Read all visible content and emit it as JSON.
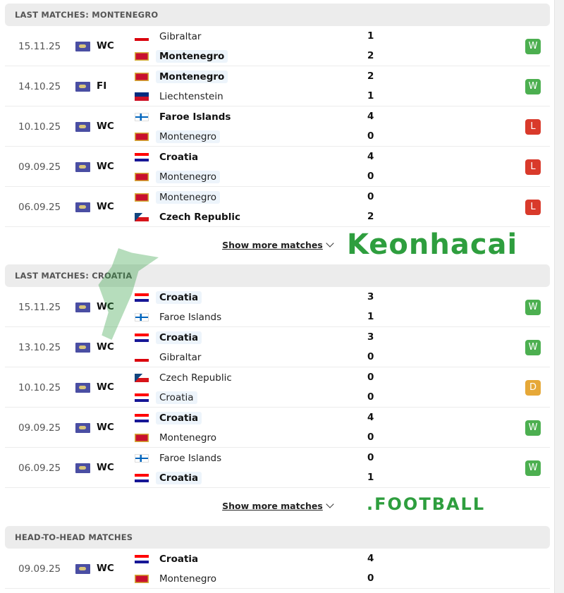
{
  "colors": {
    "win": "#4caf50",
    "loss": "#d93a2b",
    "draw": "#e6a838",
    "highlight": "#edf4fb"
  },
  "sections": [
    {
      "title": "LAST MATCHES: MONTENEGRO",
      "show_more": "Show more matches",
      "matches": [
        {
          "date": "15.11.25",
          "comp": "WC",
          "home": {
            "name": "Gibraltar",
            "flag": "gibraltar",
            "bold": false,
            "hl": false
          },
          "away": {
            "name": "Montenegro",
            "flag": "montenegro",
            "bold": true,
            "hl": true
          },
          "home_score": "1",
          "away_score": "2",
          "result": "W"
        },
        {
          "date": "14.10.25",
          "comp": "FI",
          "home": {
            "name": "Montenegro",
            "flag": "montenegro",
            "bold": true,
            "hl": true
          },
          "away": {
            "name": "Liechtenstein",
            "flag": "liechtenstein",
            "bold": false,
            "hl": false
          },
          "home_score": "2",
          "away_score": "1",
          "result": "W"
        },
        {
          "date": "10.10.25",
          "comp": "WC",
          "home": {
            "name": "Faroe Islands",
            "flag": "faroe",
            "bold": true,
            "hl": false
          },
          "away": {
            "name": "Montenegro",
            "flag": "montenegro",
            "bold": false,
            "hl": true
          },
          "home_score": "4",
          "away_score": "0",
          "result": "L"
        },
        {
          "date": "09.09.25",
          "comp": "WC",
          "home": {
            "name": "Croatia",
            "flag": "croatia",
            "bold": true,
            "hl": false
          },
          "away": {
            "name": "Montenegro",
            "flag": "montenegro",
            "bold": false,
            "hl": true
          },
          "home_score": "4",
          "away_score": "0",
          "result": "L"
        },
        {
          "date": "06.09.25",
          "comp": "WC",
          "home": {
            "name": "Montenegro",
            "flag": "montenegro",
            "bold": false,
            "hl": true
          },
          "away": {
            "name": "Czech Republic",
            "flag": "czech",
            "bold": true,
            "hl": false
          },
          "home_score": "0",
          "away_score": "2",
          "result": "L"
        }
      ]
    },
    {
      "title": "LAST MATCHES: CROATIA",
      "show_more": "Show more matches",
      "matches": [
        {
          "date": "15.11.25",
          "comp": "WC",
          "home": {
            "name": "Croatia",
            "flag": "croatia",
            "bold": true,
            "hl": true
          },
          "away": {
            "name": "Faroe Islands",
            "flag": "faroe",
            "bold": false,
            "hl": false
          },
          "home_score": "3",
          "away_score": "1",
          "result": "W"
        },
        {
          "date": "13.10.25",
          "comp": "WC",
          "home": {
            "name": "Croatia",
            "flag": "croatia",
            "bold": true,
            "hl": true
          },
          "away": {
            "name": "Gibraltar",
            "flag": "gibraltar",
            "bold": false,
            "hl": false
          },
          "home_score": "3",
          "away_score": "0",
          "result": "W"
        },
        {
          "date": "10.10.25",
          "comp": "WC",
          "home": {
            "name": "Czech Republic",
            "flag": "czech",
            "bold": false,
            "hl": false
          },
          "away": {
            "name": "Croatia",
            "flag": "croatia",
            "bold": false,
            "hl": true
          },
          "home_score": "0",
          "away_score": "0",
          "result": "D"
        },
        {
          "date": "09.09.25",
          "comp": "WC",
          "home": {
            "name": "Croatia",
            "flag": "croatia",
            "bold": true,
            "hl": true
          },
          "away": {
            "name": "Montenegro",
            "flag": "montenegro",
            "bold": false,
            "hl": false
          },
          "home_score": "4",
          "away_score": "0",
          "result": "W"
        },
        {
          "date": "06.09.25",
          "comp": "WC",
          "home": {
            "name": "Faroe Islands",
            "flag": "faroe",
            "bold": false,
            "hl": false
          },
          "away": {
            "name": "Croatia",
            "flag": "croatia",
            "bold": true,
            "hl": true
          },
          "home_score": "0",
          "away_score": "1",
          "result": "W"
        }
      ]
    },
    {
      "title": "HEAD-TO-HEAD MATCHES",
      "matches": [
        {
          "date": "09.09.25",
          "comp": "WC",
          "home": {
            "name": "Croatia",
            "flag": "croatia",
            "bold": true,
            "hl": false
          },
          "away": {
            "name": "Montenegro",
            "flag": "montenegro",
            "bold": false,
            "hl": false
          },
          "home_score": "4",
          "away_score": "0",
          "result": ""
        }
      ]
    }
  ],
  "watermark": {
    "brand": "Keonhacai",
    "sub": ".FOOTBALL"
  }
}
